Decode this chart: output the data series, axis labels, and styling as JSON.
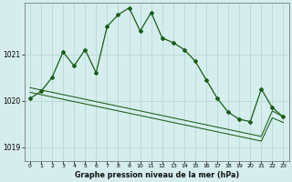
{
  "title": "Graphe pression niveau de la mer (hPa)",
  "bg_color": "#d5eeed",
  "grid_color": "#b0d4d0",
  "line_color": "#1a5c1a",
  "xlim": [
    -0.5,
    23.5
  ],
  "ylim": [
    1018.7,
    1022.1
  ],
  "yticks": [
    1019,
    1020,
    1021
  ],
  "xticks": [
    0,
    1,
    2,
    3,
    4,
    5,
    6,
    7,
    8,
    9,
    10,
    11,
    12,
    13,
    14,
    15,
    16,
    17,
    18,
    19,
    20,
    21,
    22,
    23
  ],
  "pressure_main": [
    1020.05,
    1020.2,
    1020.5,
    1021.05,
    1020.75,
    1021.1,
    1020.6,
    1021.6,
    1021.85,
    1022.0,
    1021.5,
    1021.9,
    1021.35,
    1021.25,
    1021.1,
    1020.85,
    1020.45,
    1020.05,
    1019.75,
    1019.6,
    1019.55,
    1020.25,
    1019.85,
    1019.65
  ],
  "trend1_x": [
    0,
    1,
    2,
    3,
    4,
    5,
    6,
    7,
    8,
    9,
    10,
    11,
    12,
    13,
    14,
    15,
    16,
    17,
    18,
    19,
    20,
    21,
    22,
    23
  ],
  "trend1_y": [
    1020.28,
    1020.23,
    1020.18,
    1020.13,
    1020.08,
    1020.03,
    1019.98,
    1019.93,
    1019.88,
    1019.83,
    1019.78,
    1019.73,
    1019.68,
    1019.63,
    1019.58,
    1019.53,
    1019.48,
    1019.43,
    1019.38,
    1019.33,
    1019.28,
    1019.23,
    1019.78,
    1019.65
  ],
  "trend2_x": [
    0,
    1,
    2,
    3,
    4,
    5,
    6,
    7,
    8,
    9,
    10,
    11,
    12,
    13,
    14,
    15,
    16,
    17,
    18,
    19,
    20,
    21,
    22,
    23
  ],
  "trend2_y": [
    1020.18,
    1020.13,
    1020.08,
    1020.03,
    1019.98,
    1019.93,
    1019.88,
    1019.83,
    1019.78,
    1019.73,
    1019.68,
    1019.63,
    1019.58,
    1019.53,
    1019.48,
    1019.43,
    1019.38,
    1019.33,
    1019.28,
    1019.23,
    1019.18,
    1019.13,
    1019.63,
    1019.53
  ]
}
